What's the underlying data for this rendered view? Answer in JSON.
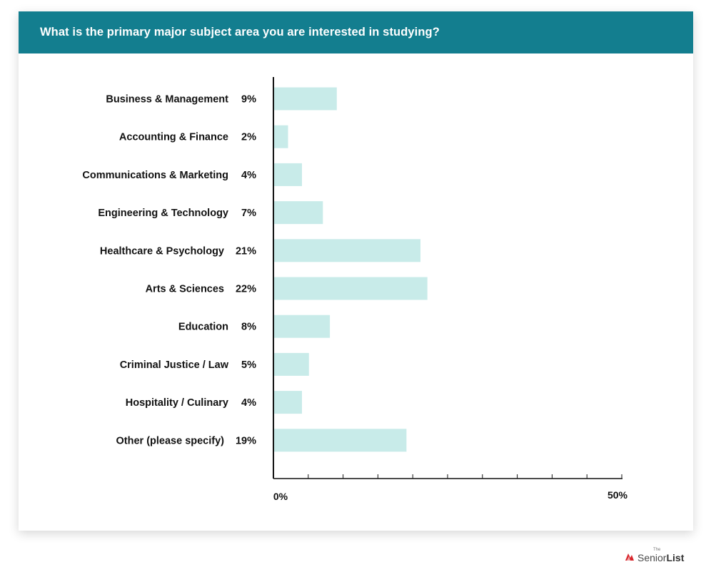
{
  "header": {
    "title": "What is the primary major subject area you are interested in studying?"
  },
  "chart_data": {
    "type": "bar",
    "orientation": "horizontal",
    "title": "What is the primary major subject area you are interested in studying?",
    "categories": [
      "Business & Management",
      "Accounting & Finance",
      "Communications & Marketing",
      "Engineering & Technology",
      "Healthcare & Psychology",
      "Arts & Sciences",
      "Education",
      "Criminal Justice / Law",
      "Hospitality / Culinary",
      "Other (please specify)"
    ],
    "values": [
      9,
      2,
      4,
      7,
      21,
      22,
      8,
      5,
      4,
      19
    ],
    "value_labels": [
      "9%",
      "2%",
      "4%",
      "7%",
      "21%",
      "22%",
      "8%",
      "5%",
      "4%",
      "19%"
    ],
    "xlim": [
      0,
      50
    ],
    "tick_labels": [
      "0%",
      "50%"
    ],
    "grid": false,
    "legend": "none",
    "bar_color": "#c8ebe9",
    "header_color": "#137e8f"
  },
  "logo": {
    "the": "The",
    "senior": "Senior",
    "list": "List",
    "mark_color": "#d8262c"
  }
}
